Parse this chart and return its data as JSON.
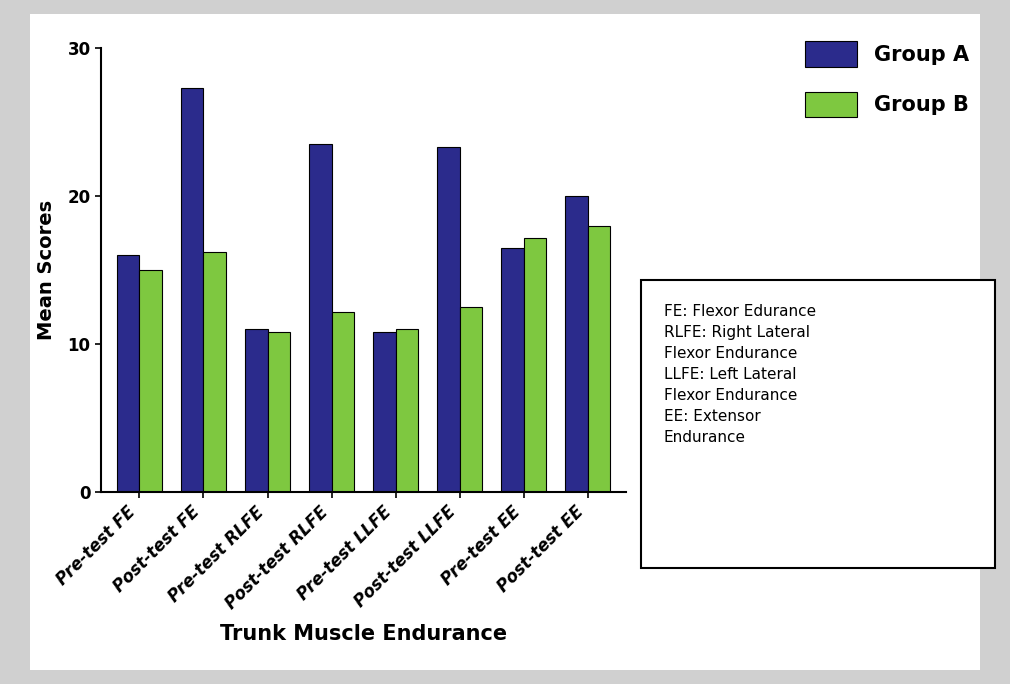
{
  "categories": [
    "Pre-test FE",
    "Post-test FE",
    "Pre-test RLFE",
    "Post-test RLFE",
    "Pre-test LLFE",
    "Post-test LLFE",
    "Pre-test EE",
    "Post-test EE"
  ],
  "group_a_values": [
    16.0,
    27.3,
    11.0,
    23.5,
    10.8,
    23.3,
    16.5,
    20.0
  ],
  "group_b_values": [
    15.0,
    16.2,
    10.8,
    12.2,
    11.0,
    12.5,
    17.2,
    18.0
  ],
  "group_a_color": "#2B2B8C",
  "group_b_color": "#7EC840",
  "bar_edge_color": "#000000",
  "bar_width": 0.35,
  "xlabel": "Trunk Muscle Endurance",
  "ylabel": "Mean Scores",
  "ylim": [
    0,
    30
  ],
  "yticks": [
    0,
    10,
    20,
    30
  ],
  "legend_labels": [
    "Group A",
    "Group B"
  ],
  "annotation_text": "FE: Flexor Edurance\nRLFE: Right Lateral\nFlexor Endurance\nLLFE: Left Lateral\nFlexor Endurance\nEE: Extensor\nEndurance",
  "xlabel_fontsize": 15,
  "ylabel_fontsize": 14,
  "tick_fontsize": 12,
  "legend_fontsize": 15,
  "annotation_fontsize": 11,
  "background_color": "#ffffff",
  "outer_bg_color": "#d0d0d0"
}
